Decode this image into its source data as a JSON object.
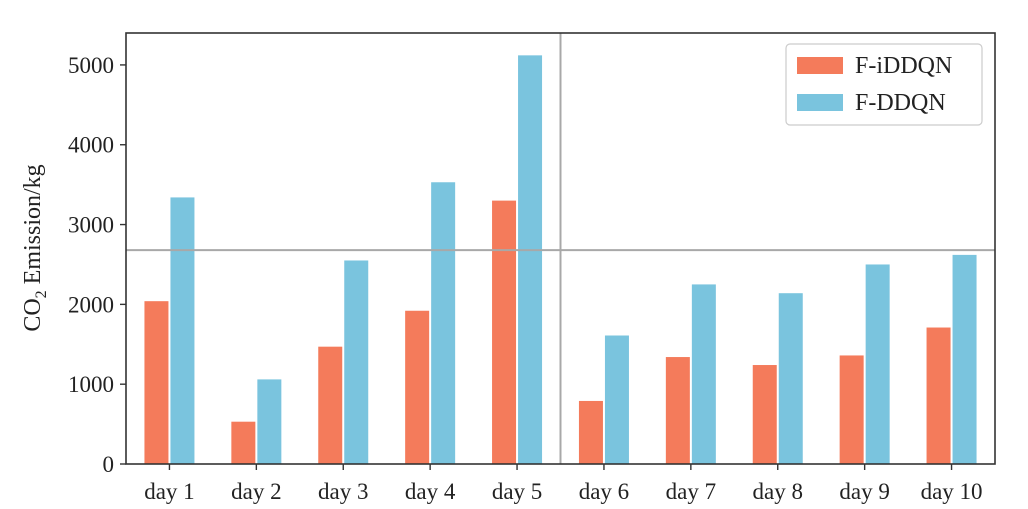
{
  "chart_data": {
    "type": "bar",
    "categories": [
      "day 1",
      "day 2",
      "day 3",
      "day 4",
      "day 5",
      "day 6",
      "day 7",
      "day 8",
      "day 9",
      "day 10"
    ],
    "series": [
      {
        "name": "F-iDDQN",
        "color": "#F47B5B",
        "values": [
          2040,
          530,
          1470,
          1920,
          3300,
          790,
          1340,
          1240,
          1360,
          1710
        ]
      },
      {
        "name": "F-DDQN",
        "color": "#7AC4DE",
        "values": [
          3340,
          1060,
          2550,
          3530,
          5120,
          1610,
          2250,
          2140,
          2500,
          2620
        ]
      }
    ],
    "ylabel_main": "CO",
    "ylabel_sub": "2",
    "ylabel_rest": " Emission/kg",
    "yticks": [
      0,
      1000,
      2000,
      3000,
      4000,
      5000
    ],
    "ylim": [
      0,
      5400
    ],
    "reference_lines": {
      "horizontal_y": 2680,
      "vertical_after_category": "day 5"
    },
    "legend_position": "top-right",
    "grid": false
  }
}
